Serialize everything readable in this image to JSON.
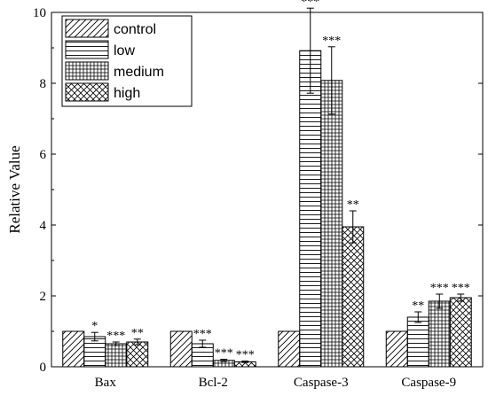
{
  "chart_data": {
    "type": "bar",
    "title": "",
    "xlabel": "",
    "ylabel": "Relative Value",
    "ylim": [
      0,
      10
    ],
    "yticks": [
      0,
      2,
      4,
      6,
      8,
      10
    ],
    "legend_position": "top-left",
    "categories": [
      "Bax",
      "Bcl-2",
      "Caspase-3",
      "Caspase-9"
    ],
    "series": [
      {
        "name": "control",
        "pattern": "diagonal-hatch",
        "values": [
          1.0,
          1.0,
          1.0,
          1.0
        ],
        "errors": [
          0,
          0,
          0,
          0
        ],
        "significance": [
          "",
          "",
          "",
          ""
        ]
      },
      {
        "name": "low",
        "pattern": "horizontal-lines",
        "values": [
          0.85,
          0.65,
          8.92,
          1.4
        ],
        "errors": [
          0.12,
          0.1,
          1.2,
          0.15
        ],
        "significance": [
          "*",
          "***",
          "***",
          "**"
        ]
      },
      {
        "name": "medium",
        "pattern": "grid",
        "values": [
          0.65,
          0.18,
          8.08,
          1.85
        ],
        "errors": [
          0.05,
          0.03,
          0.95,
          0.2
        ],
        "significance": [
          "***",
          "***",
          "***",
          "***"
        ]
      },
      {
        "name": "high",
        "pattern": "cross-hatch",
        "values": [
          0.7,
          0.14,
          3.95,
          1.95
        ],
        "errors": [
          0.08,
          0.02,
          0.45,
          0.1
        ],
        "significance": [
          "**",
          "***",
          "**",
          "***"
        ]
      }
    ]
  }
}
